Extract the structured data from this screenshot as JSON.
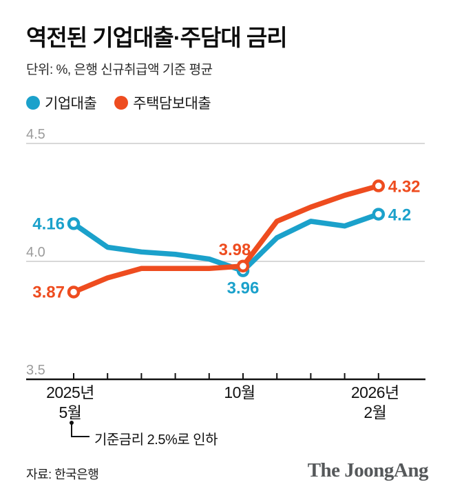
{
  "title": "역전된 기업대출·주담대 금리",
  "subtitle": "단위: %, 은행 신규취급액 기준 평균",
  "legend": [
    {
      "label": "기업대출",
      "color": "#1ba1cb"
    },
    {
      "label": "주택담보대출",
      "color": "#ee4c1f"
    }
  ],
  "chart_data": {
    "type": "line",
    "x": [
      "2025-05",
      "2025-06",
      "2025-07",
      "2025-08",
      "2025-09",
      "2025-10",
      "2025-11",
      "2025-12",
      "2026-01",
      "2026-02"
    ],
    "series": [
      {
        "name": "기업대출",
        "color": "#1ba1cb",
        "values": [
          4.16,
          4.06,
          4.04,
          4.03,
          4.01,
          3.96,
          4.1,
          4.17,
          4.15,
          4.2
        ],
        "labeled_points": [
          {
            "index": 0,
            "text": "4.16",
            "position": "left"
          },
          {
            "index": 5,
            "text": "3.96",
            "position": "below"
          },
          {
            "index": 9,
            "text": "4.2",
            "position": "right"
          }
        ]
      },
      {
        "name": "주택담보대출",
        "color": "#ee4c1f",
        "values": [
          3.87,
          3.93,
          3.97,
          3.97,
          3.97,
          3.98,
          4.17,
          4.23,
          4.28,
          4.32
        ],
        "labeled_points": [
          {
            "index": 0,
            "text": "3.87",
            "position": "left"
          },
          {
            "index": 5,
            "text": "3.98",
            "position": "above"
          },
          {
            "index": 9,
            "text": "4.32",
            "position": "right"
          }
        ]
      }
    ],
    "ylim": [
      3.5,
      4.5
    ],
    "yticks": [
      {
        "label": "4.5",
        "value": 4.5
      },
      {
        "label": "4.0",
        "value": 4.0
      },
      {
        "label": "3.5",
        "value": 3.5
      }
    ],
    "xticks": [
      {
        "index": 0,
        "lines": [
          "2025년",
          "5월"
        ]
      },
      {
        "index": 5,
        "lines": [
          "10월"
        ]
      },
      {
        "index": 9,
        "lines": [
          "2026년",
          "2월"
        ]
      }
    ],
    "grid": "horizontal",
    "legend_position": "top"
  },
  "annotation": {
    "text": "기준금리 2.5%로 인하",
    "target_index": 0
  },
  "footer": {
    "source": "자료: 한국은행",
    "brand": "The JoongAng"
  },
  "colors": {
    "blue": "#1ba1cb",
    "orange": "#ee4c1f",
    "gridline": "#cccccc",
    "axis": "#111111",
    "ytick_label": "#9b9b9b"
  }
}
